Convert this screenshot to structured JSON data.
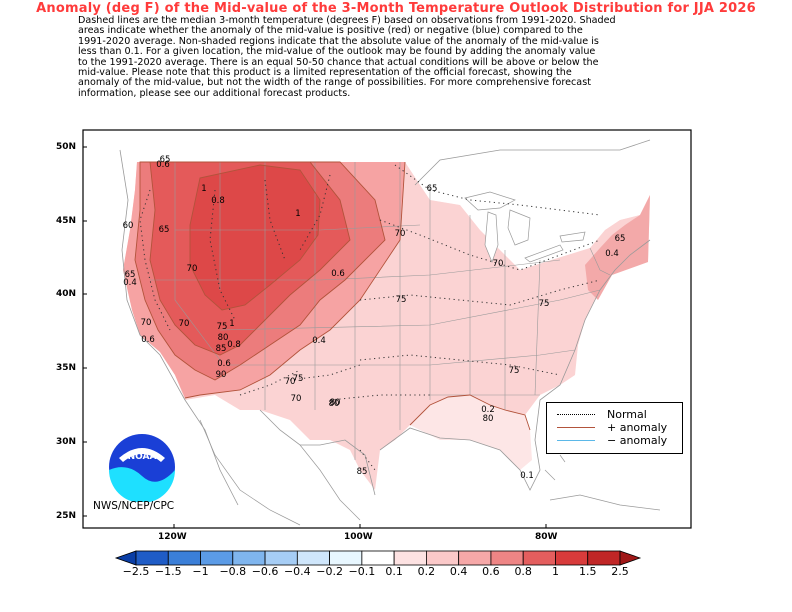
{
  "title": "Anomaly (deg F) of the Mid-value of the 3-Month Temperature Outlook Distribution for JJA 2026",
  "description": [
    "Dashed lines are the median 3-month temperature (degrees F) based on observations from 1991-2020.  Shaded",
    "areas indicate whether the anomaly of the mid-value is positive (red) or negative (blue) compared to the",
    "1991-2020 average.   Non-shaded regions indicate that the absolute value of the anomaly of the mid-value is",
    "less than 0.1.   For a given location, the mid-value of the outlook may be found by adding the anomaly value",
    "to the 1991-2020 average. There is an equal 50-50 chance that actual conditions will be above or below the",
    "mid-value. Please note that this product is a limited representation of the official forecast, showing the",
    "anomaly of the mid-value, but not the width of the range of possibilities. For more comprehensive forecast",
    "information, please see our additional forecast products."
  ],
  "axes": {
    "lat_labels": [
      "50N",
      "45N",
      "40N",
      "35N",
      "30N",
      "25N"
    ],
    "lon_labels": [
      "120W",
      "100W",
      "80W"
    ]
  },
  "map_labels": {
    "normal_contours": [
      "65",
      "65",
      "70",
      "75",
      "70",
      "70",
      "70",
      "75",
      "80",
      "85",
      "80",
      "75",
      "65",
      "60",
      "65",
      "70",
      "65",
      "70",
      "75",
      "80",
      "85",
      "90",
      "70",
      "75",
      "80"
    ],
    "anomaly_contours": [
      "0.6",
      "1",
      "1",
      "0.6",
      "0.4",
      "0.8",
      "0.6",
      "0.4",
      "0.2",
      "0.1",
      "0.4",
      "0.6",
      "0.8",
      "1"
    ]
  },
  "legend": {
    "items": [
      {
        "label": "Normal",
        "style": "dotted",
        "color": "#000000"
      },
      {
        "label": "+ anomaly",
        "style": "solid",
        "color": "#b2533b"
      },
      {
        "label": "− anomaly",
        "style": "solid",
        "color": "#5bb8e8"
      }
    ]
  },
  "logo_text": "NOAA",
  "agency": "NWS/NCEP/CPC",
  "colorbar": {
    "labels": [
      "−2.5",
      "−1.5",
      "−1",
      "−0.8",
      "−0.6",
      "−0.4",
      "−0.2",
      "−0.1",
      "0.1",
      "0.2",
      "0.4",
      "0.6",
      "0.8",
      "1",
      "1.5",
      "2.5"
    ],
    "colors": [
      "#0a3ea6",
      "#1f5cc6",
      "#3b7fd8",
      "#5b9be6",
      "#7fb5ee",
      "#a6cdf5",
      "#cfe6fb",
      "#e8f7ff",
      "#ffffff",
      "#fde2e2",
      "#fbc9c9",
      "#f6a8a8",
      "#ee8585",
      "#e45e5e",
      "#d83b3b",
      "#c02626",
      "#a01818"
    ]
  },
  "colors": {
    "title": "#ff3b3b",
    "frame": "#000000",
    "state_lines": "#9a9a9a"
  }
}
